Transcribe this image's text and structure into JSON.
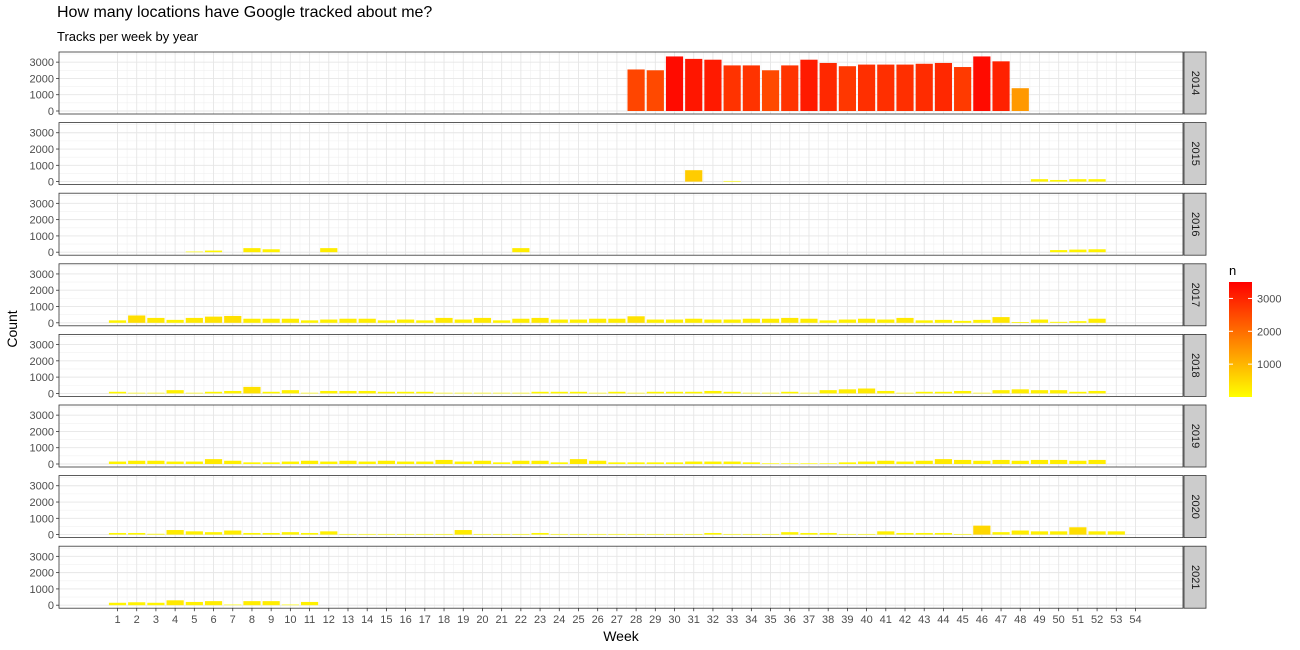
{
  "chart_data": {
    "type": "bar",
    "title": "How many locations have Google tracked about me?",
    "subtitle": "Tracks per week by year",
    "xlabel": "Week",
    "ylabel": "Count",
    "x_ticks": [
      1,
      2,
      3,
      4,
      5,
      6,
      7,
      8,
      9,
      10,
      11,
      12,
      13,
      14,
      15,
      16,
      17,
      18,
      19,
      20,
      21,
      22,
      23,
      24,
      25,
      26,
      27,
      28,
      29,
      30,
      31,
      32,
      33,
      34,
      35,
      36,
      37,
      38,
      39,
      40,
      41,
      42,
      43,
      44,
      45,
      46,
      47,
      48,
      49,
      50,
      51,
      52,
      53,
      54
    ],
    "y_ticks": [
      0,
      1000,
      2000,
      3000
    ],
    "ylim": [
      0,
      3500
    ],
    "grid": true,
    "facet_by": "year",
    "legend": {
      "title": "n",
      "position": "right",
      "ticks": [
        1000,
        2000,
        3000
      ],
      "range": [
        0,
        3500
      ],
      "color_low": "#ffff00",
      "color_high": "#ff0000"
    },
    "panels": [
      {
        "year": "2014",
        "weeks": [
          28,
          29,
          30,
          31,
          32,
          33,
          34,
          35,
          36,
          37,
          38,
          39,
          40,
          41,
          42,
          43,
          44,
          45,
          46,
          47,
          48
        ],
        "values": [
          2550,
          2500,
          3350,
          3200,
          3150,
          2800,
          2800,
          2500,
          2800,
          3150,
          2950,
          2750,
          2850,
          2850,
          2850,
          2900,
          2950,
          2700,
          3350,
          3050,
          1400
        ]
      },
      {
        "year": "2015",
        "weeks": [
          31,
          33,
          49,
          50,
          51,
          52
        ],
        "values": [
          700,
          40,
          150,
          100,
          150,
          150
        ]
      },
      {
        "year": "2016",
        "weeks": [
          5,
          6,
          8,
          9,
          12,
          22,
          50,
          51,
          52
        ],
        "values": [
          40,
          100,
          250,
          180,
          250,
          250,
          130,
          160,
          180
        ]
      },
      {
        "year": "2017",
        "weeks": [
          1,
          2,
          3,
          4,
          5,
          6,
          7,
          8,
          9,
          10,
          11,
          12,
          13,
          14,
          15,
          16,
          17,
          18,
          19,
          20,
          21,
          22,
          23,
          24,
          25,
          26,
          27,
          28,
          29,
          30,
          31,
          32,
          33,
          34,
          35,
          36,
          37,
          38,
          39,
          40,
          41,
          42,
          43,
          44,
          45,
          46,
          47,
          48,
          49,
          50,
          51,
          52
        ],
        "values": [
          150,
          450,
          300,
          180,
          300,
          380,
          420,
          250,
          250,
          250,
          150,
          200,
          250,
          250,
          150,
          200,
          150,
          300,
          200,
          300,
          150,
          250,
          300,
          200,
          200,
          250,
          250,
          400,
          200,
          200,
          250,
          200,
          200,
          250,
          250,
          300,
          250,
          150,
          200,
          250,
          200,
          300,
          150,
          180,
          120,
          180,
          350,
          50,
          200,
          60,
          100,
          250
        ]
      },
      {
        "year": "2018",
        "weeks": [
          1,
          2,
          3,
          4,
          5,
          6,
          7,
          8,
          9,
          10,
          11,
          12,
          13,
          14,
          15,
          16,
          17,
          18,
          19,
          20,
          21,
          22,
          23,
          24,
          25,
          26,
          27,
          28,
          29,
          30,
          31,
          32,
          33,
          34,
          35,
          36,
          37,
          38,
          39,
          40,
          41,
          42,
          43,
          44,
          45,
          46,
          47,
          48,
          49,
          50,
          51,
          52
        ],
        "values": [
          100,
          40,
          40,
          200,
          40,
          100,
          150,
          400,
          100,
          200,
          40,
          150,
          150,
          150,
          100,
          100,
          100,
          40,
          40,
          40,
          40,
          40,
          100,
          100,
          100,
          40,
          100,
          40,
          100,
          100,
          100,
          150,
          100,
          40,
          40,
          100,
          40,
          200,
          250,
          300,
          150,
          40,
          100,
          100,
          150,
          40,
          200,
          250,
          200,
          200,
          100,
          150
        ]
      },
      {
        "year": "2019",
        "weeks": [
          1,
          2,
          3,
          4,
          5,
          6,
          7,
          8,
          9,
          10,
          11,
          12,
          13,
          14,
          15,
          16,
          17,
          18,
          19,
          20,
          21,
          22,
          23,
          24,
          25,
          26,
          27,
          28,
          29,
          30,
          31,
          32,
          33,
          34,
          35,
          36,
          37,
          38,
          39,
          40,
          41,
          42,
          43,
          44,
          45,
          46,
          47,
          48,
          49,
          50,
          51,
          52
        ],
        "values": [
          150,
          200,
          200,
          150,
          150,
          300,
          200,
          100,
          100,
          150,
          200,
          150,
          200,
          150,
          200,
          150,
          150,
          250,
          150,
          200,
          100,
          200,
          200,
          100,
          300,
          200,
          100,
          100,
          100,
          100,
          150,
          150,
          150,
          100,
          40,
          40,
          40,
          40,
          100,
          150,
          200,
          150,
          200,
          300,
          250,
          200,
          250,
          200,
          250,
          250,
          200,
          250
        ]
      },
      {
        "year": "2020",
        "weeks": [
          1,
          2,
          3,
          4,
          5,
          6,
          7,
          8,
          9,
          10,
          11,
          12,
          13,
          14,
          15,
          16,
          17,
          18,
          19,
          20,
          21,
          22,
          23,
          24,
          25,
          26,
          27,
          28,
          29,
          30,
          31,
          32,
          33,
          34,
          35,
          36,
          37,
          38,
          39,
          40,
          41,
          42,
          43,
          44,
          45,
          46,
          47,
          48,
          49,
          50,
          51,
          52,
          53
        ],
        "values": [
          100,
          100,
          50,
          280,
          200,
          150,
          250,
          100,
          100,
          150,
          100,
          200,
          40,
          40,
          40,
          40,
          40,
          40,
          280,
          40,
          40,
          40,
          100,
          40,
          40,
          40,
          40,
          40,
          40,
          40,
          40,
          100,
          40,
          40,
          40,
          150,
          100,
          100,
          40,
          40,
          200,
          100,
          100,
          100,
          40,
          550,
          150,
          250,
          200,
          200,
          450,
          200,
          200
        ]
      },
      {
        "year": "2021",
        "weeks": [
          1,
          2,
          3,
          4,
          5,
          6,
          7,
          8,
          9,
          10,
          11
        ],
        "values": [
          150,
          180,
          150,
          300,
          200,
          250,
          40,
          250,
          250,
          40,
          200
        ]
      }
    ]
  }
}
